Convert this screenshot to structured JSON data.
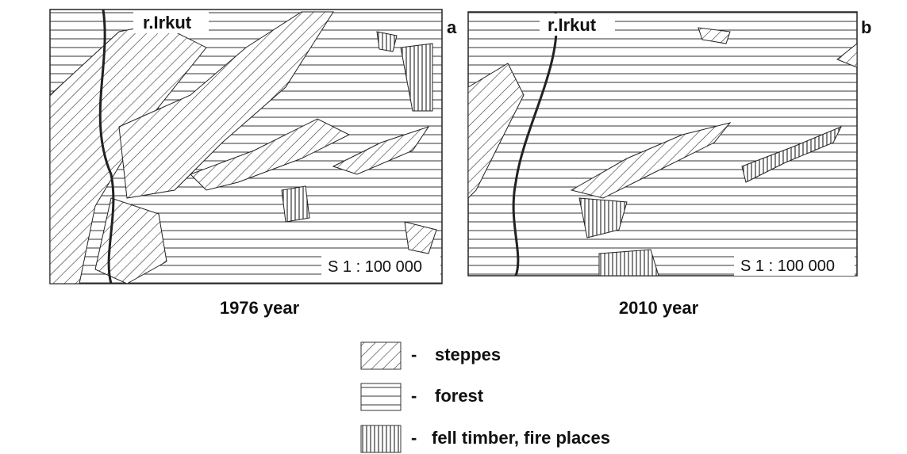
{
  "panels": [
    {
      "letter": "a",
      "river": "r.Irkut",
      "scale": "S 1 : 100 000",
      "caption": "1976 year"
    },
    {
      "letter": "b",
      "river": "r.Irkut",
      "scale": "S 1 : 100 000",
      "caption": "2010 year"
    }
  ],
  "legend": {
    "items": [
      {
        "dash": "-",
        "label": "steppes"
      },
      {
        "dash": "-",
        "label": "forest"
      },
      {
        "dash": "-",
        "label": "fell timber, fire places"
      }
    ]
  }
}
